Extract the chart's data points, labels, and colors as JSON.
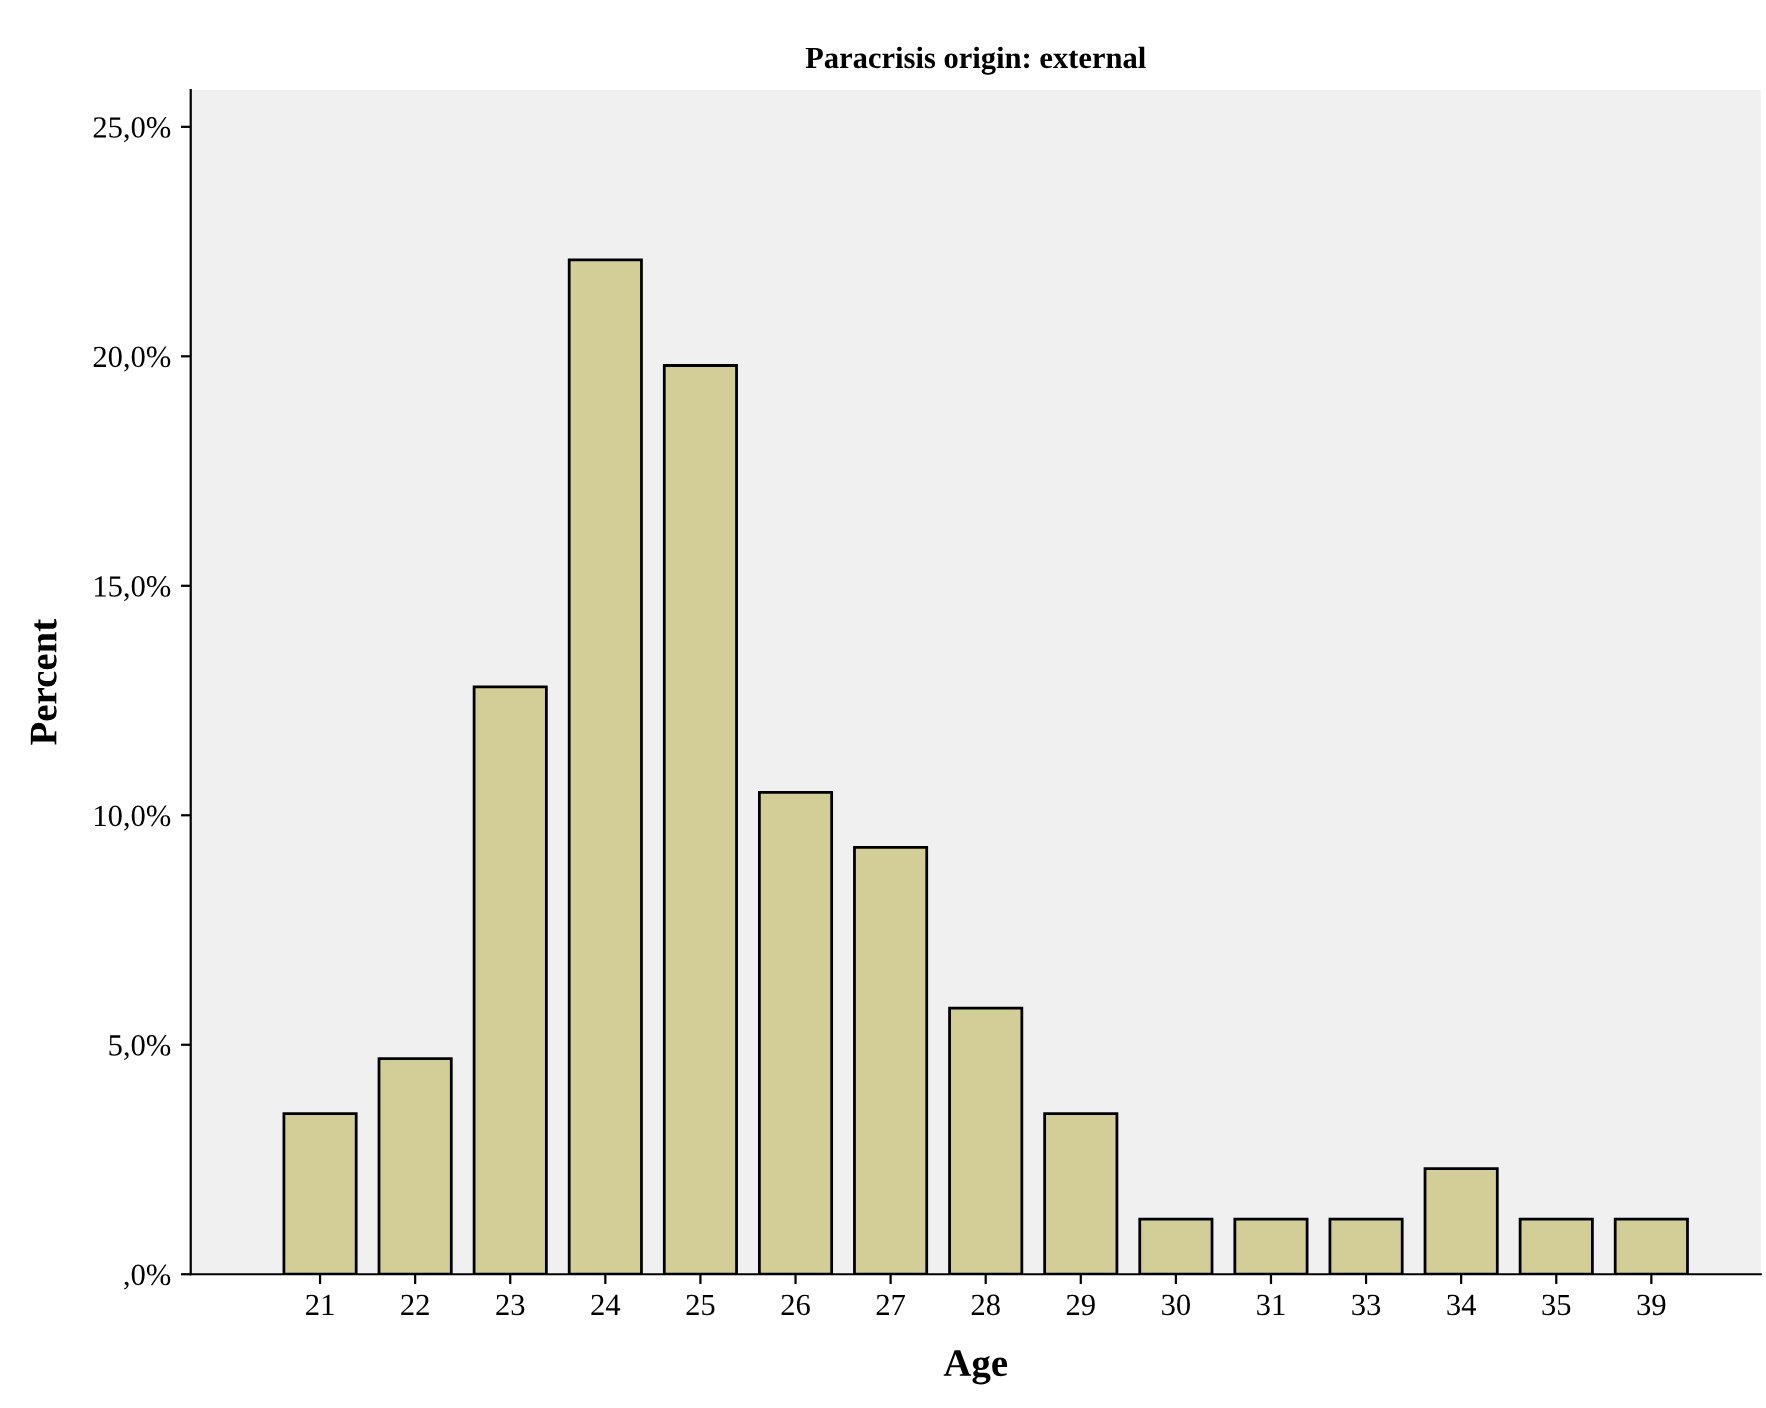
{
  "chart_data": {
    "type": "bar",
    "title": "Paracrisis origin: external",
    "xlabel": "Age",
    "ylabel": "Percent",
    "categories": [
      "21",
      "22",
      "23",
      "24",
      "25",
      "26",
      "27",
      "28",
      "29",
      "30",
      "31",
      "33",
      "34",
      "35",
      "39"
    ],
    "values": [
      3.5,
      4.7,
      12.8,
      22.1,
      19.8,
      10.5,
      9.3,
      5.8,
      3.5,
      1.2,
      1.2,
      1.2,
      2.3,
      1.2,
      1.2
    ],
    "color": "#d3ce97",
    "ylim": [
      0,
      25.8
    ],
    "yticks": [
      {
        "value": 0,
        "label": ",0%"
      },
      {
        "value": 5,
        "label": "5,0%"
      },
      {
        "value": 10,
        "label": "10,0%"
      },
      {
        "value": 15,
        "label": "15,0%"
      },
      {
        "value": 20,
        "label": "20,0%"
      },
      {
        "value": 25,
        "label": "25,0%"
      }
    ],
    "grid": false,
    "legend": false
  }
}
